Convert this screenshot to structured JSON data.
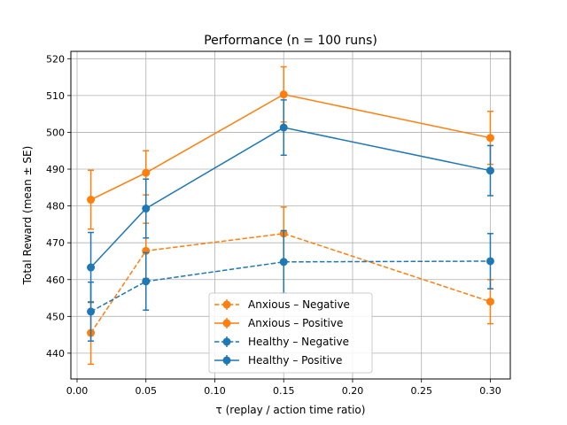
{
  "chart_data": {
    "type": "line",
    "title": "Performance  (n = 100 runs)",
    "xlabel": "τ  (replay / action time ratio)",
    "ylabel": "Total Reward  (mean ± SE)",
    "xlim": [
      -0.0045,
      0.3145
    ],
    "ylim": [
      433,
      522
    ],
    "xticks": [
      0.0,
      0.05,
      0.1,
      0.15,
      0.2,
      0.25,
      0.3
    ],
    "xtick_labels": [
      "0.00",
      "0.05",
      "0.10",
      "0.15",
      "0.20",
      "0.25",
      "0.30"
    ],
    "yticks": [
      440,
      450,
      460,
      470,
      480,
      490,
      500,
      510,
      520
    ],
    "ytick_labels": [
      "440",
      "450",
      "460",
      "470",
      "480",
      "490",
      "500",
      "510",
      "520"
    ],
    "grid": true,
    "legend_position": "bottom-center",
    "x": [
      0.01,
      0.05,
      0.15,
      0.3
    ],
    "series": [
      {
        "name": "Anxious – Negative",
        "color": "#ff7f0e",
        "dashed": true,
        "values": [
          445.5,
          467.8,
          472.5,
          454.0
        ],
        "err": [
          8.5,
          7.5,
          7.2,
          6.0
        ]
      },
      {
        "name": "Anxious – Positive",
        "color": "#ff7f0e",
        "dashed": false,
        "values": [
          481.7,
          489.0,
          510.3,
          498.5
        ],
        "err": [
          8.0,
          6.0,
          7.5,
          7.2
        ]
      },
      {
        "name": "Healthy – Negative",
        "color": "#1f77b4",
        "dashed": true,
        "values": [
          451.3,
          459.5,
          464.8,
          465.0
        ],
        "err": [
          8.0,
          7.8,
          8.5,
          7.5
        ]
      },
      {
        "name": "Healthy – Positive",
        "color": "#1f77b4",
        "dashed": false,
        "values": [
          463.3,
          479.3,
          501.3,
          489.6
        ],
        "err": [
          9.5,
          8.0,
          7.5,
          6.8
        ]
      }
    ]
  }
}
